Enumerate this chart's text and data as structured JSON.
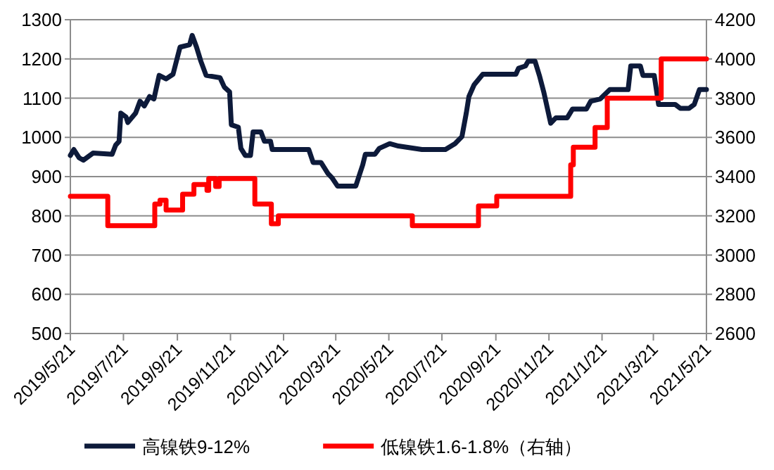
{
  "chart_data": {
    "type": "line",
    "grid": "y",
    "legend": "bottom",
    "line_style": "solid",
    "xlim": [
      "2019-05-21",
      "2021-05-21"
    ],
    "xticks": [
      {
        "value": "2019-05-21",
        "label": "2019/5/21"
      },
      {
        "value": "2019-07-21",
        "label": "2019/7/21"
      },
      {
        "value": "2019-09-21",
        "label": "2019/9/21"
      },
      {
        "value": "2019-11-21",
        "label": "2019/11/21"
      },
      {
        "value": "2020-01-21",
        "label": "2020/1/21"
      },
      {
        "value": "2020-03-21",
        "label": "2020/3/21"
      },
      {
        "value": "2020-05-21",
        "label": "2020/5/21"
      },
      {
        "value": "2020-07-21",
        "label": "2020/7/21"
      },
      {
        "value": "2020-09-21",
        "label": "2020/9/21"
      },
      {
        "value": "2020-11-21",
        "label": "2020/11/21"
      },
      {
        "value": "2021-01-21",
        "label": "2021/1/21"
      },
      {
        "value": "2021-03-21",
        "label": "2021/3/21"
      },
      {
        "value": "2021-05-21",
        "label": "2021/5/21"
      }
    ],
    "ylim": [
      500,
      1300
    ],
    "yticks": [
      500,
      600,
      700,
      800,
      900,
      1000,
      1100,
      1200,
      1300
    ],
    "y2lim": [
      2600,
      4200
    ],
    "y2ticks": [
      2600,
      2800,
      3000,
      3200,
      3400,
      3600,
      3800,
      4000,
      4200
    ],
    "series": [
      {
        "name": "高镍铁9-12%",
        "color": "#0d1a3a",
        "x": [
          "2019-05-21",
          "2019-05-25",
          "2019-05-31",
          "2019-06-05",
          "2019-06-16",
          "2019-07-08",
          "2019-07-12",
          "2019-07-16",
          "2019-07-18",
          "2019-07-24",
          "2019-07-26",
          "2019-08-04",
          "2019-08-09",
          "2019-08-14",
          "2019-08-20",
          "2019-08-25",
          "2019-08-31",
          "2019-09-08",
          "2019-09-16",
          "2019-09-24",
          "2019-10-05",
          "2019-10-08",
          "2019-10-13",
          "2019-10-18",
          "2019-10-24",
          "2019-11-09",
          "2019-11-14",
          "2019-11-20",
          "2019-11-22",
          "2019-11-30",
          "2019-12-03",
          "2019-12-08",
          "2019-12-14",
          "2019-12-17",
          "2019-12-26",
          "2019-12-30",
          "2020-01-06",
          "2020-01-08",
          "2020-02-19",
          "2020-02-24",
          "2020-03-04",
          "2020-03-12",
          "2020-03-17",
          "2020-03-23",
          "2020-04-13",
          "2020-04-21",
          "2020-04-24",
          "2020-05-05",
          "2020-05-10",
          "2020-05-22",
          "2020-06-01",
          "2020-06-28",
          "2020-07-25",
          "2020-08-05",
          "2020-08-13",
          "2020-08-18",
          "2020-08-21",
          "2020-08-27",
          "2020-09-06",
          "2020-10-14",
          "2020-10-17",
          "2020-10-25",
          "2020-10-28",
          "2020-11-05",
          "2020-11-10",
          "2020-11-15",
          "2020-11-23",
          "2020-11-29",
          "2020-12-12",
          "2020-12-18",
          "2021-01-03",
          "2021-01-08",
          "2021-01-19",
          "2021-01-30",
          "2021-02-20",
          "2021-02-23",
          "2021-03-06",
          "2021-03-09",
          "2021-03-22",
          "2021-03-27",
          "2021-04-15",
          "2021-04-21",
          "2021-05-01",
          "2021-05-07",
          "2021-05-13",
          "2021-05-21"
        ],
        "values": [
          954,
          969,
          948,
          942,
          960,
          957,
          980,
          990,
          1062,
          1052,
          1038,
          1062,
          1092,
          1080,
          1104,
          1098,
          1158,
          1149,
          1161,
          1230,
          1236,
          1260,
          1230,
          1194,
          1158,
          1152,
          1128,
          1116,
          1032,
          1026,
          972,
          954,
          954,
          1014,
          1014,
          990,
          990,
          969,
          969,
          936,
          936,
          908,
          896,
          876,
          876,
          930,
          957,
          957,
          972,
          984,
          978,
          969,
          969,
          984,
          1002,
          1062,
          1104,
          1134,
          1161,
          1161,
          1176,
          1182,
          1194,
          1194,
          1158,
          1116,
          1036,
          1050,
          1050,
          1072,
          1072,
          1092,
          1098,
          1122,
          1122,
          1182,
          1182,
          1158,
          1158,
          1084,
          1084,
          1074,
          1074,
          1084,
          1122,
          1122
        ]
      },
      {
        "name": "低镍铁1.6-1.8%（右轴）",
        "color": "#ff0000",
        "type": "step",
        "axis": "y2",
        "x": [
          "2019-05-21",
          "2019-07-03",
          "2019-08-26",
          "2019-09-01",
          "2019-09-08",
          "2019-09-27",
          "2019-10-10",
          "2019-10-25",
          "2019-10-27",
          "2019-11-04",
          "2019-11-08",
          "2019-12-19",
          "2020-01-07",
          "2020-01-15",
          "2020-06-17",
          "2020-09-01",
          "2020-09-22",
          "2020-12-16",
          "2020-12-19",
          "2021-01-13",
          "2021-01-27",
          "2021-03-30",
          "2021-05-21"
        ],
        "values": [
          3300,
          3150,
          3260,
          3280,
          3230,
          3310,
          3360,
          3330,
          3390,
          3350,
          3390,
          3260,
          3160,
          3200,
          3150,
          3250,
          3300,
          3460,
          3550,
          3650,
          3800,
          4000,
          4000
        ]
      }
    ]
  }
}
